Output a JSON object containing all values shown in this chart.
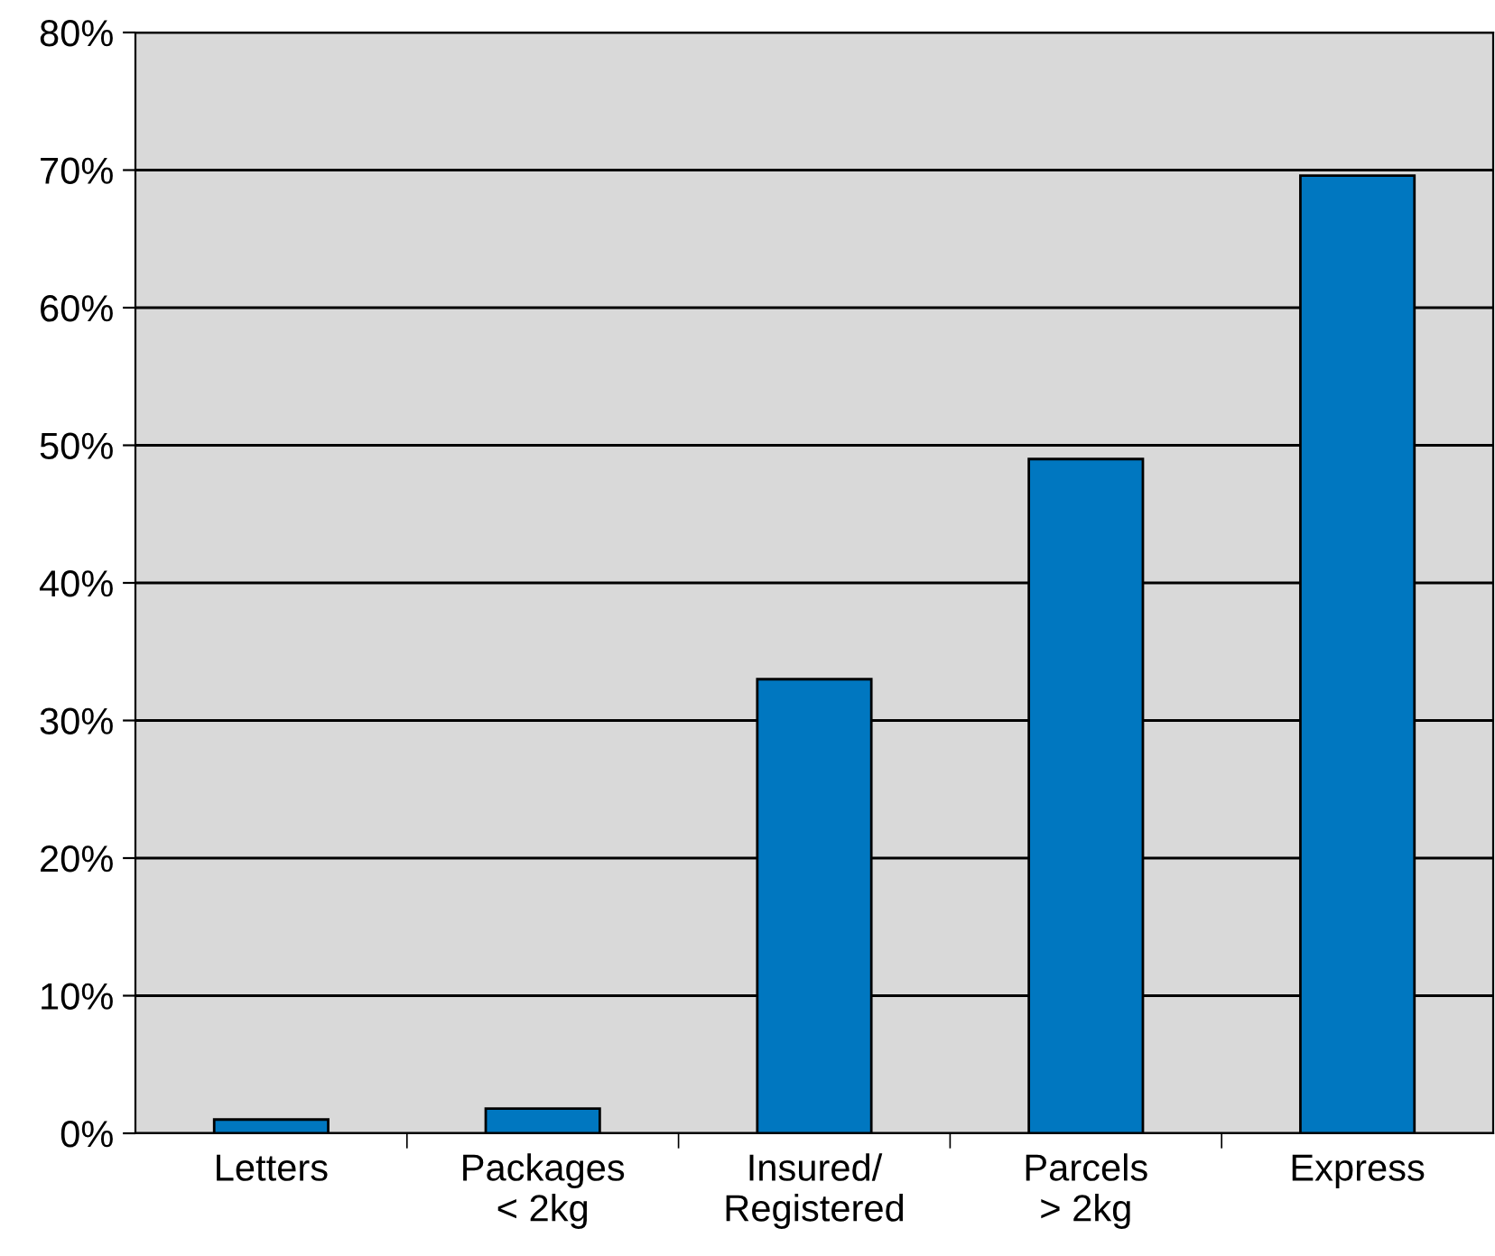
{
  "chart_data": {
    "type": "bar",
    "categories": [
      "Letters",
      "Packages\n< 2kg",
      "Insured/\nRegistered",
      "Parcels\n> 2kg",
      "Express"
    ],
    "values": [
      1,
      1.8,
      33,
      49,
      69.6
    ],
    "color": "#0077c0",
    "ylim": [
      0,
      80
    ],
    "yticks": [
      {
        "value": 0,
        "label": "0%"
      },
      {
        "value": 10,
        "label": "10%"
      },
      {
        "value": 20,
        "label": "20%"
      },
      {
        "value": 30,
        "label": "30%"
      },
      {
        "value": 40,
        "label": "40%"
      },
      {
        "value": 50,
        "label": "50%"
      },
      {
        "value": 60,
        "label": "60%"
      },
      {
        "value": 70,
        "label": "70%"
      },
      {
        "value": 80,
        "label": "80%"
      }
    ],
    "grid": "y",
    "legend": false
  }
}
